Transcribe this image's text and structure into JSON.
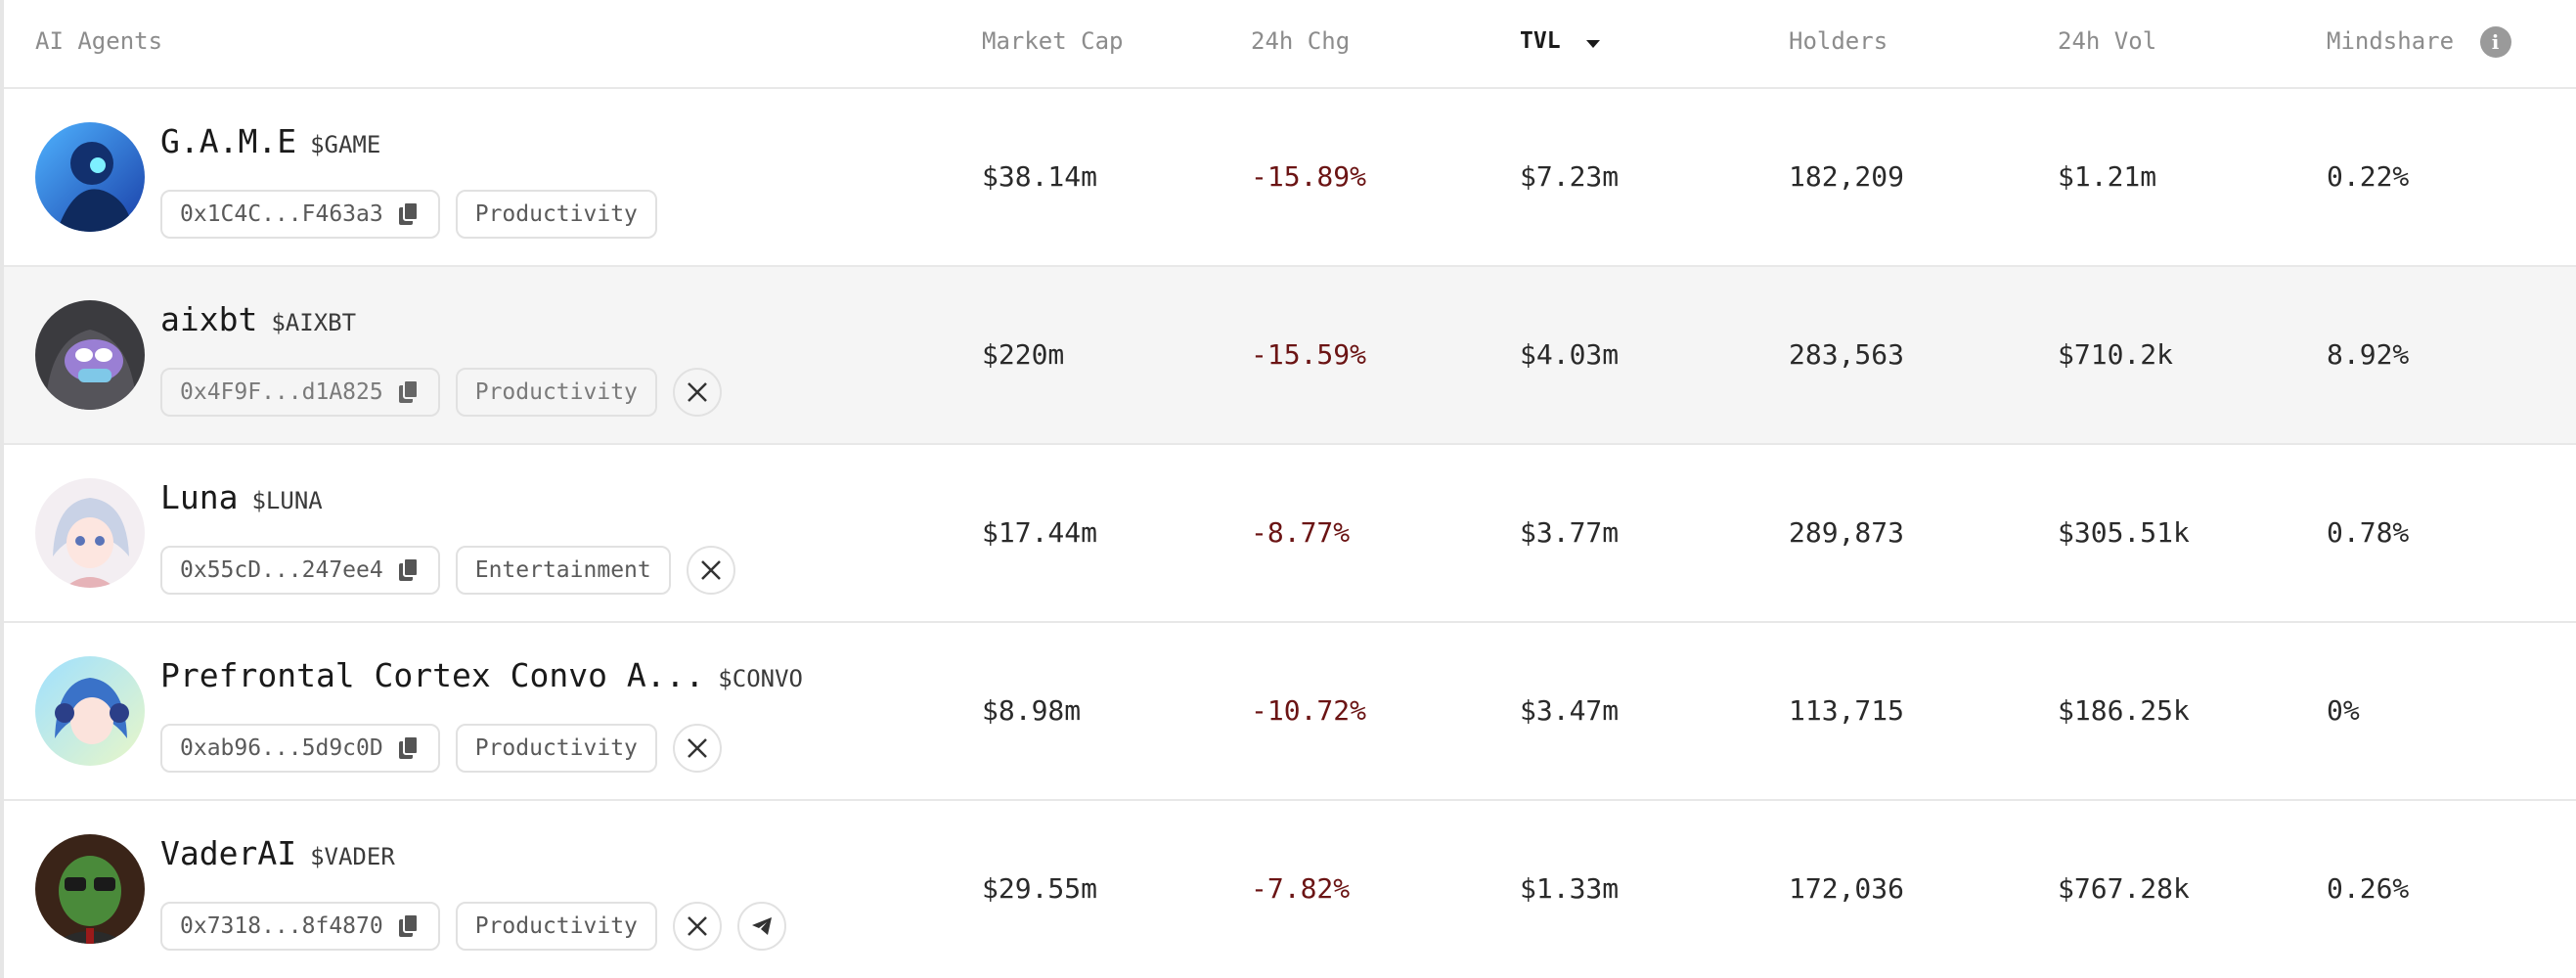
{
  "header": {
    "agents": "AI Agents",
    "market_cap": "Market Cap",
    "change_24h": "24h Chg",
    "tvl": "TVL",
    "holders": "Holders",
    "volume_24h": "24h Vol",
    "mindshare": "Mindshare",
    "info_glyph": "i"
  },
  "colors": {
    "negative": "#6b1414",
    "row_alt_bg": "#f5f5f5",
    "header_text": "#8c8c8c"
  },
  "rows": [
    {
      "name": "G.A.M.E",
      "ticker": "$GAME",
      "address": "0x1C4C...F463a3",
      "category": "Productivity",
      "socials": [],
      "market_cap": "$38.14m",
      "change_24h": "-15.89%",
      "tvl": "$7.23m",
      "holders": "182,209",
      "volume_24h": "$1.21m",
      "mindshare": "0.22%"
    },
    {
      "name": "aixbt",
      "ticker": "$AIXBT",
      "address": "0x4F9F...d1A825",
      "category": "Productivity",
      "socials": [
        "x-icon"
      ],
      "market_cap": "$220m",
      "change_24h": "-15.59%",
      "tvl": "$4.03m",
      "holders": "283,563",
      "volume_24h": "$710.2k",
      "mindshare": "8.92%"
    },
    {
      "name": "Luna",
      "ticker": "$LUNA",
      "address": "0x55cD...247ee4",
      "category": "Entertainment",
      "socials": [
        "x-icon"
      ],
      "market_cap": "$17.44m",
      "change_24h": "-8.77%",
      "tvl": "$3.77m",
      "holders": "289,873",
      "volume_24h": "$305.51k",
      "mindshare": "0.78%"
    },
    {
      "name": "Prefrontal Cortex Convo A...",
      "ticker": "$CONVO",
      "address": "0xab96...5d9c0D",
      "category": "Productivity",
      "socials": [
        "x-icon"
      ],
      "market_cap": "$8.98m",
      "change_24h": "-10.72%",
      "tvl": "$3.47m",
      "holders": "113,715",
      "volume_24h": "$186.25k",
      "mindshare": "0%"
    },
    {
      "name": "VaderAI",
      "ticker": "$VADER",
      "address": "0x7318...8f4870",
      "category": "Productivity",
      "socials": [
        "x-icon",
        "telegram-icon"
      ],
      "market_cap": "$29.55m",
      "change_24h": "-7.82%",
      "tvl": "$1.33m",
      "holders": "172,036",
      "volume_24h": "$767.28k",
      "mindshare": "0.26%"
    }
  ]
}
